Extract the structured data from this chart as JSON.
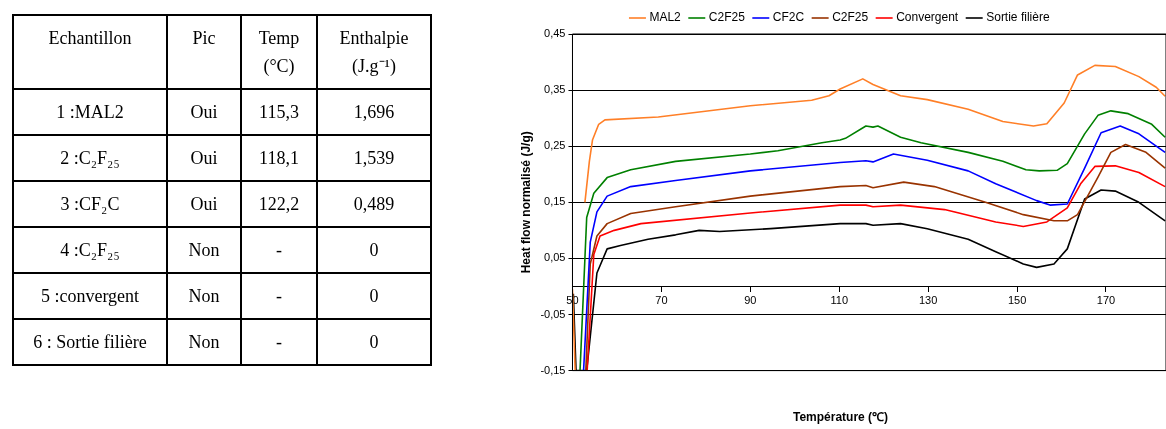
{
  "chart_data": [
    {
      "type": "other",
      "annotations": [
        "Echantillon",
        "Pic",
        "Temp (°C)",
        "Enthalpie (J.g⁻¹)",
        "1 :MAL2",
        "Oui",
        "115,3",
        "1,696",
        "2 :C₂F₂₅",
        "Oui",
        "118,1",
        "1,539",
        "3 :CF₂C",
        "Oui",
        "122,2",
        "0,489",
        "4 :C₂F₂₅",
        "Non",
        "-",
        "0",
        "5 :convergent",
        "Non",
        "-",
        "0",
        "6 : Sortie filière",
        "Non",
        "-",
        "0"
      ]
    },
    {
      "type": "line",
      "xlabel": "Température (℃)",
      "ylabel": "Heat flow normalisé (J/g)",
      "xlim": [
        50,
        183.5
      ],
      "xticks": [
        50,
        70,
        90,
        110,
        130,
        150,
        170
      ],
      "ylim": [
        -0.15,
        0.45
      ],
      "yticks": [
        {
          "value": 0.45,
          "label": "0,45"
        },
        {
          "value": 0.35,
          "label": "0,35"
        },
        {
          "value": 0.25,
          "label": "0,25"
        },
        {
          "value": 0.15,
          "label": "0,15"
        },
        {
          "value": 0.05,
          "label": "0,05"
        },
        {
          "value": -0.05,
          "label": "-0,05"
        },
        {
          "value": -0.15,
          "label": "-0,15"
        }
      ],
      "grid": "y",
      "legend": "top",
      "marker": "none",
      "line_style": "solid",
      "series": [
        {
          "name": "MAL2",
          "color": "#ff7f27",
          "x": [
            50,
            50.6,
            51.2,
            52.8,
            53.8,
            54.5,
            55.9,
            57.3,
            69.3,
            90,
            103.8,
            107.7,
            110.2,
            115.3,
            117.6,
            123.8,
            129.8,
            139,
            146.8,
            153.7,
            156.7,
            160.6,
            163.6,
            167.5,
            172.1,
            177.4,
            181.3,
            183.3
          ],
          "values": [
            -0.005,
            -0.15,
            null,
            0.15,
            0.223,
            0.261,
            0.289,
            0.297,
            0.302,
            0.322,
            0.332,
            0.34,
            0.352,
            0.37,
            0.36,
            0.34,
            0.333,
            0.316,
            0.294,
            0.286,
            0.29,
            0.327,
            0.377,
            0.394,
            0.392,
            0.374,
            0.355,
            0.339
          ]
        },
        {
          "name": "C2F25",
          "color": "#008000",
          "x": [
            51.7,
            53.2,
            54.8,
            57.8,
            63.1,
            73.2,
            90,
            96.2,
            106.1,
            110.2,
            111.4,
            116,
            117.6,
            118.7,
            123.8,
            128.4,
            139,
            146.8,
            152,
            155,
            159,
            161.3,
            165.2,
            168.2,
            171.1,
            175,
            180.3,
            183.3
          ],
          "values": [
            -0.15,
            0.123,
            0.166,
            0.194,
            0.208,
            0.223,
            0.236,
            0.242,
            0.256,
            0.261,
            0.264,
            0.286,
            0.284,
            0.286,
            0.266,
            0.256,
            0.239,
            0.223,
            0.208,
            0.206,
            0.207,
            0.219,
            0.272,
            0.305,
            0.313,
            0.308,
            0.289,
            0.266
          ]
        },
        {
          "name": "CF2C",
          "color": "#0000ff",
          "x": [
            52.5,
            54,
            55.5,
            57.8,
            63.1,
            73.2,
            90,
            110.2,
            116,
            117.6,
            122.2,
            129.8,
            139,
            145.2,
            154.4,
            157.4,
            161.3,
            165.2,
            168.9,
            173.2,
            177.4,
            183.3
          ],
          "values": [
            -0.15,
            0.079,
            0.133,
            0.161,
            0.178,
            0.189,
            0.206,
            0.221,
            0.224,
            0.222,
            0.236,
            0.225,
            0.206,
            0.183,
            0.153,
            0.145,
            0.147,
            0.211,
            0.274,
            0.286,
            0.272,
            0.239
          ]
        },
        {
          "name": "C2F25",
          "color": "#993300",
          "x": [
            53,
            54,
            55.5,
            57.8,
            63.1,
            73.2,
            90,
            110.2,
            116,
            117.6,
            124.5,
            131.4,
            142.9,
            151.4,
            158.3,
            161.3,
            163.6,
            168.2,
            171.1,
            174.4,
            179,
            183.3
          ],
          "values": [
            -0.15,
            0.04,
            0.09,
            0.112,
            0.13,
            0.142,
            0.161,
            0.178,
            0.18,
            0.176,
            0.186,
            0.178,
            0.15,
            0.128,
            0.117,
            0.117,
            0.128,
            0.195,
            0.239,
            0.253,
            0.239,
            0.211
          ]
        },
        {
          "name": "Convergent",
          "color": "#ff0000",
          "x": [
            53.3,
            54.8,
            56.2,
            59.4,
            65.4,
            90,
            110.2,
            116,
            117.6,
            123.8,
            133.7,
            145.2,
            151.4,
            156.7,
            161.3,
            164.3,
            167.5,
            172.1,
            177.4,
            183.3
          ],
          "values": [
            -0.15,
            0.057,
            0.09,
            0.1,
            0.112,
            0.131,
            0.145,
            0.145,
            0.142,
            0.145,
            0.137,
            0.115,
            0.107,
            0.115,
            0.14,
            0.183,
            0.214,
            0.215,
            0.203,
            0.178
          ]
        },
        {
          "name": "Sortie filière",
          "color": "#000000",
          "x": [
            50.2,
            50.8,
            53.2,
            55.5,
            57.8,
            60.8,
            67,
            73.2,
            78.5,
            83.1,
            94.6,
            110.2,
            116,
            117.6,
            123.8,
            129.8,
            139,
            145.2,
            151.4,
            154.4,
            158.3,
            161.3,
            165.2,
            168.9,
            172.1,
            177.4,
            183.3
          ],
          "values": [
            -0.013,
            -0.15,
            -0.15,
            0.024,
            0.067,
            0.073,
            0.084,
            0.092,
            0.1,
            0.098,
            0.103,
            0.112,
            0.112,
            0.109,
            0.112,
            0.103,
            0.084,
            0.062,
            0.04,
            0.034,
            0.04,
            0.067,
            0.156,
            0.172,
            0.17,
            0.15,
            0.117
          ]
        }
      ]
    }
  ]
}
